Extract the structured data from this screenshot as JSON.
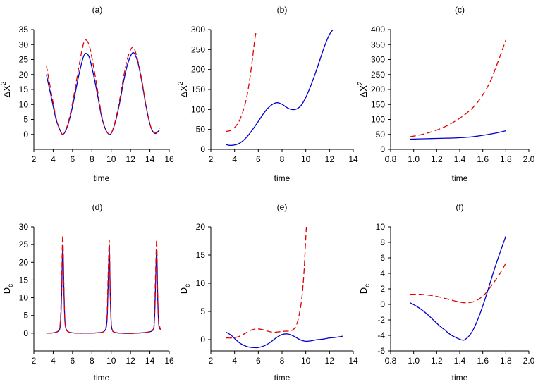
{
  "chart_data": [
    {
      "type": "line",
      "panel": "a",
      "title": "(a)",
      "xlabel": "time",
      "ylabel": "ΔX²",
      "ylabel_main": "ΔX",
      "ylabel_sup": "2",
      "xlim": [
        2,
        16
      ],
      "ylim": [
        -5,
        35
      ],
      "xticks": [
        2,
        4,
        6,
        8,
        10,
        12,
        14,
        16
      ],
      "yticks": [
        0,
        5,
        10,
        15,
        20,
        25,
        30,
        35
      ],
      "series": [
        {
          "name": "solid",
          "color": "#0000cc",
          "style": "solid",
          "x": [
            3.3,
            3.8,
            4.3,
            4.7,
            5.0,
            5.4,
            5.8,
            6.2,
            6.6,
            7.0,
            7.3,
            7.7,
            8.1,
            8.6,
            9.0,
            9.4,
            9.8,
            10.1,
            10.5,
            10.9,
            11.3,
            11.7,
            12.1,
            12.4,
            12.8,
            13.2,
            13.6,
            14.0,
            14.3,
            14.6,
            15.0
          ],
          "y": [
            20,
            12.5,
            5,
            1.5,
            0,
            2,
            6.5,
            12.5,
            19,
            24.5,
            27,
            26,
            21,
            13,
            6,
            1.8,
            0,
            1,
            5,
            11,
            18,
            23.5,
            26.8,
            27,
            23.5,
            17,
            9.5,
            3.5,
            1,
            0.3,
            1.5
          ]
        },
        {
          "name": "dashed",
          "color": "#e00000",
          "style": "dashed",
          "x": [
            3.3,
            3.8,
            4.3,
            4.7,
            5.0,
            5.4,
            5.8,
            6.2,
            6.6,
            7.0,
            7.3,
            7.7,
            8.1,
            8.6,
            9.0,
            9.4,
            9.8,
            10.1,
            10.5,
            10.9,
            11.3,
            11.7,
            12.1,
            12.4,
            12.8,
            13.2,
            13.6,
            14.0,
            14.3,
            14.6,
            15.0
          ],
          "y": [
            23,
            14,
            5.5,
            1.5,
            0,
            2.3,
            7.3,
            14,
            21.5,
            28.5,
            31.5,
            30,
            24,
            14.5,
            6.5,
            1.8,
            0,
            1,
            5.5,
            12,
            19.5,
            25.5,
            28.8,
            28.5,
            24,
            17.5,
            9.5,
            3.5,
            1,
            0.5,
            2.2
          ]
        }
      ]
    },
    {
      "type": "line",
      "panel": "b",
      "title": "(b)",
      "xlabel": "time",
      "ylabel": "ΔX²",
      "ylabel_main": "ΔX",
      "ylabel_sup": "2",
      "xlim": [
        2,
        14
      ],
      "ylim": [
        0,
        300
      ],
      "xticks": [
        2,
        4,
        6,
        8,
        10,
        12,
        14
      ],
      "yticks": [
        0,
        50,
        100,
        150,
        200,
        250,
        300
      ],
      "series": [
        {
          "name": "solid",
          "color": "#0000cc",
          "style": "solid",
          "x": [
            3.3,
            3.6,
            4.0,
            4.4,
            4.8,
            5.2,
            5.6,
            6.0,
            6.4,
            6.8,
            7.2,
            7.6,
            8.0,
            8.4,
            8.8,
            9.2,
            9.6,
            10.0,
            10.4,
            10.8,
            11.2,
            11.6,
            12.0,
            12.3
          ],
          "y": [
            12,
            10,
            11,
            15,
            24,
            37,
            53,
            70,
            88,
            103,
            113,
            117,
            113,
            105,
            100,
            101,
            110,
            130,
            158,
            190,
            225,
            260,
            288,
            300
          ]
        },
        {
          "name": "dashed",
          "color": "#e00000",
          "style": "dashed",
          "x": [
            3.3,
            3.7,
            4.1,
            4.5,
            4.9,
            5.2,
            5.5,
            5.7,
            5.85
          ],
          "y": [
            45,
            48,
            58,
            78,
            115,
            160,
            225,
            275,
            300
          ]
        }
      ]
    },
    {
      "type": "line",
      "panel": "c",
      "title": "(c)",
      "xlabel": "time",
      "ylabel": "ΔX²",
      "ylabel_main": "ΔX",
      "ylabel_sup": "2",
      "xlim": [
        0.8,
        2.0
      ],
      "ylim": [
        0,
        400
      ],
      "xticks": [
        "0.8",
        "1.0",
        "1.2",
        "1.4",
        "1.6",
        "1.8",
        "2.0"
      ],
      "yticks": [
        0,
        50,
        100,
        150,
        200,
        250,
        300,
        350,
        400
      ],
      "series": [
        {
          "name": "solid",
          "color": "#0000cc",
          "style": "solid",
          "x": [
            0.97,
            1.05,
            1.15,
            1.25,
            1.35,
            1.45,
            1.55,
            1.65,
            1.72,
            1.8
          ],
          "y": [
            34,
            35,
            36,
            37,
            38,
            40,
            44,
            50,
            55,
            62
          ]
        },
        {
          "name": "dashed",
          "color": "#e00000",
          "style": "dashed",
          "x": [
            0.97,
            1.05,
            1.15,
            1.25,
            1.35,
            1.45,
            1.55,
            1.65,
            1.72,
            1.8
          ],
          "y": [
            42,
            48,
            58,
            72,
            92,
            118,
            155,
            215,
            280,
            365
          ]
        }
      ]
    },
    {
      "type": "line",
      "panel": "d",
      "title": "(d)",
      "xlabel": "time",
      "ylabel": "Dc",
      "ylabel_main": "D",
      "ylabel_sub": "c",
      "xlim": [
        2,
        16
      ],
      "ylim": [
        -5,
        30
      ],
      "xticks": [
        2,
        4,
        6,
        8,
        10,
        12,
        14,
        16
      ],
      "yticks": [
        0,
        5,
        10,
        15,
        20,
        25,
        30
      ],
      "series": [
        {
          "name": "solid",
          "color": "#0000cc",
          "style": "solid",
          "x": [
            3.3,
            4.0,
            4.5,
            4.7,
            4.8,
            4.9,
            4.95,
            5.0,
            5.05,
            5.1,
            5.2,
            5.3,
            5.5,
            6.0,
            7.0,
            8.5,
            9.3,
            9.55,
            9.65,
            9.75,
            9.8,
            9.85,
            9.9,
            10.0,
            10.1,
            10.3,
            11,
            12.5,
            14.2,
            14.45,
            14.55,
            14.65,
            14.7,
            14.75,
            14.8,
            14.9,
            15.0,
            15.1
          ],
          "y": [
            0,
            0.1,
            0.5,
            1.5,
            5,
            14,
            21,
            24,
            20,
            13,
            4,
            1.5,
            0.5,
            0.1,
            0,
            0.1,
            0.6,
            3,
            10,
            20,
            23.5,
            19,
            11,
            3,
            1,
            0.3,
            0,
            0,
            0.6,
            3,
            10,
            20,
            23.5,
            19,
            11,
            3,
            1.5,
            1
          ]
        },
        {
          "name": "dashed",
          "color": "#e00000",
          "style": "dashed",
          "x": [
            3.3,
            4.0,
            4.5,
            4.7,
            4.8,
            4.9,
            4.95,
            5.0,
            5.05,
            5.1,
            5.2,
            5.3,
            5.5,
            6.0,
            7.0,
            8.5,
            9.3,
            9.55,
            9.65,
            9.75,
            9.8,
            9.85,
            9.9,
            10.0,
            10.1,
            10.3,
            11,
            12.5,
            14.2,
            14.45,
            14.55,
            14.65,
            14.7,
            14.75,
            14.8,
            14.9,
            15.0,
            15.1
          ],
          "y": [
            0,
            0.1,
            0.6,
            2,
            7,
            18,
            25,
            27.5,
            22,
            14,
            4.5,
            1.5,
            0.5,
            0.1,
            0,
            0.1,
            0.7,
            4,
            13,
            23,
            26.2,
            21,
            12,
            3,
            1,
            0.3,
            0,
            0,
            0.7,
            4,
            13,
            23,
            26.3,
            21,
            12,
            3.5,
            2,
            1
          ]
        }
      ]
    },
    {
      "type": "line",
      "panel": "e",
      "title": "(e)",
      "xlabel": "time",
      "ylabel": "Dc",
      "ylabel_main": "D",
      "ylabel_sub": "c",
      "xlim": [
        2,
        14
      ],
      "ylim": [
        -2,
        20
      ],
      "xticks": [
        2,
        4,
        6,
        8,
        10,
        12,
        14
      ],
      "yticks": [
        0,
        5,
        10,
        15,
        20
      ],
      "series": [
        {
          "name": "solid",
          "color": "#0000cc",
          "style": "solid",
          "x": [
            3.3,
            3.7,
            4.1,
            4.5,
            5.0,
            5.5,
            6.0,
            6.5,
            7.0,
            7.5,
            8.0,
            8.5,
            9.0,
            9.5,
            10.0,
            10.5,
            11.0,
            11.5,
            12.0,
            12.5,
            13.1
          ],
          "y": [
            1.3,
            0.8,
            0,
            -0.7,
            -1.2,
            -1.4,
            -1.4,
            -1.1,
            -0.5,
            0.3,
            0.9,
            1.0,
            0.6,
            0,
            -0.3,
            -0.2,
            0,
            0.1,
            0.3,
            0.4,
            0.6
          ]
        },
        {
          "name": "dashed",
          "color": "#e00000",
          "style": "dashed",
          "x": [
            3.3,
            3.8,
            4.3,
            4.8,
            5.3,
            5.8,
            6.3,
            6.8,
            7.3,
            7.8,
            8.3,
            8.8,
            9.2,
            9.5,
            9.7,
            9.85,
            9.95,
            10.05
          ],
          "y": [
            0.3,
            0.3,
            0.5,
            1.0,
            1.6,
            1.9,
            1.8,
            1.5,
            1.3,
            1.4,
            1.5,
            1.6,
            2.5,
            5,
            8,
            12,
            16,
            20
          ]
        }
      ]
    },
    {
      "type": "line",
      "panel": "f",
      "title": "(f)",
      "xlabel": "time",
      "ylabel": "Dc",
      "ylabel_main": "D",
      "ylabel_sub": "c",
      "xlim": [
        0.8,
        2.0
      ],
      "ylim": [
        -6,
        10
      ],
      "xticks": [
        "0.8",
        "1.0",
        "1.2",
        "1.4",
        "1.6",
        "1.8",
        "2.0"
      ],
      "yticks": [
        -6,
        -4,
        -2,
        0,
        2,
        4,
        6,
        8,
        10
      ],
      "series": [
        {
          "name": "solid",
          "color": "#0000cc",
          "style": "solid",
          "x": [
            0.97,
            1.02,
            1.07,
            1.12,
            1.17,
            1.22,
            1.27,
            1.32,
            1.37,
            1.42,
            1.45,
            1.5,
            1.55,
            1.6,
            1.65,
            1.7,
            1.75,
            1.8
          ],
          "y": [
            0.2,
            -0.2,
            -0.7,
            -1.3,
            -2.0,
            -2.7,
            -3.3,
            -3.9,
            -4.3,
            -4.6,
            -4.5,
            -3.7,
            -2.2,
            -0.2,
            2.1,
            4.5,
            6.7,
            8.8
          ]
        },
        {
          "name": "dashed",
          "color": "#e00000",
          "style": "dashed",
          "x": [
            0.97,
            1.05,
            1.13,
            1.21,
            1.29,
            1.37,
            1.45,
            1.53,
            1.61,
            1.69,
            1.75,
            1.8
          ],
          "y": [
            1.3,
            1.3,
            1.2,
            1.0,
            0.7,
            0.4,
            0.2,
            0.4,
            1.2,
            2.7,
            4.0,
            5.3
          ]
        }
      ]
    }
  ]
}
